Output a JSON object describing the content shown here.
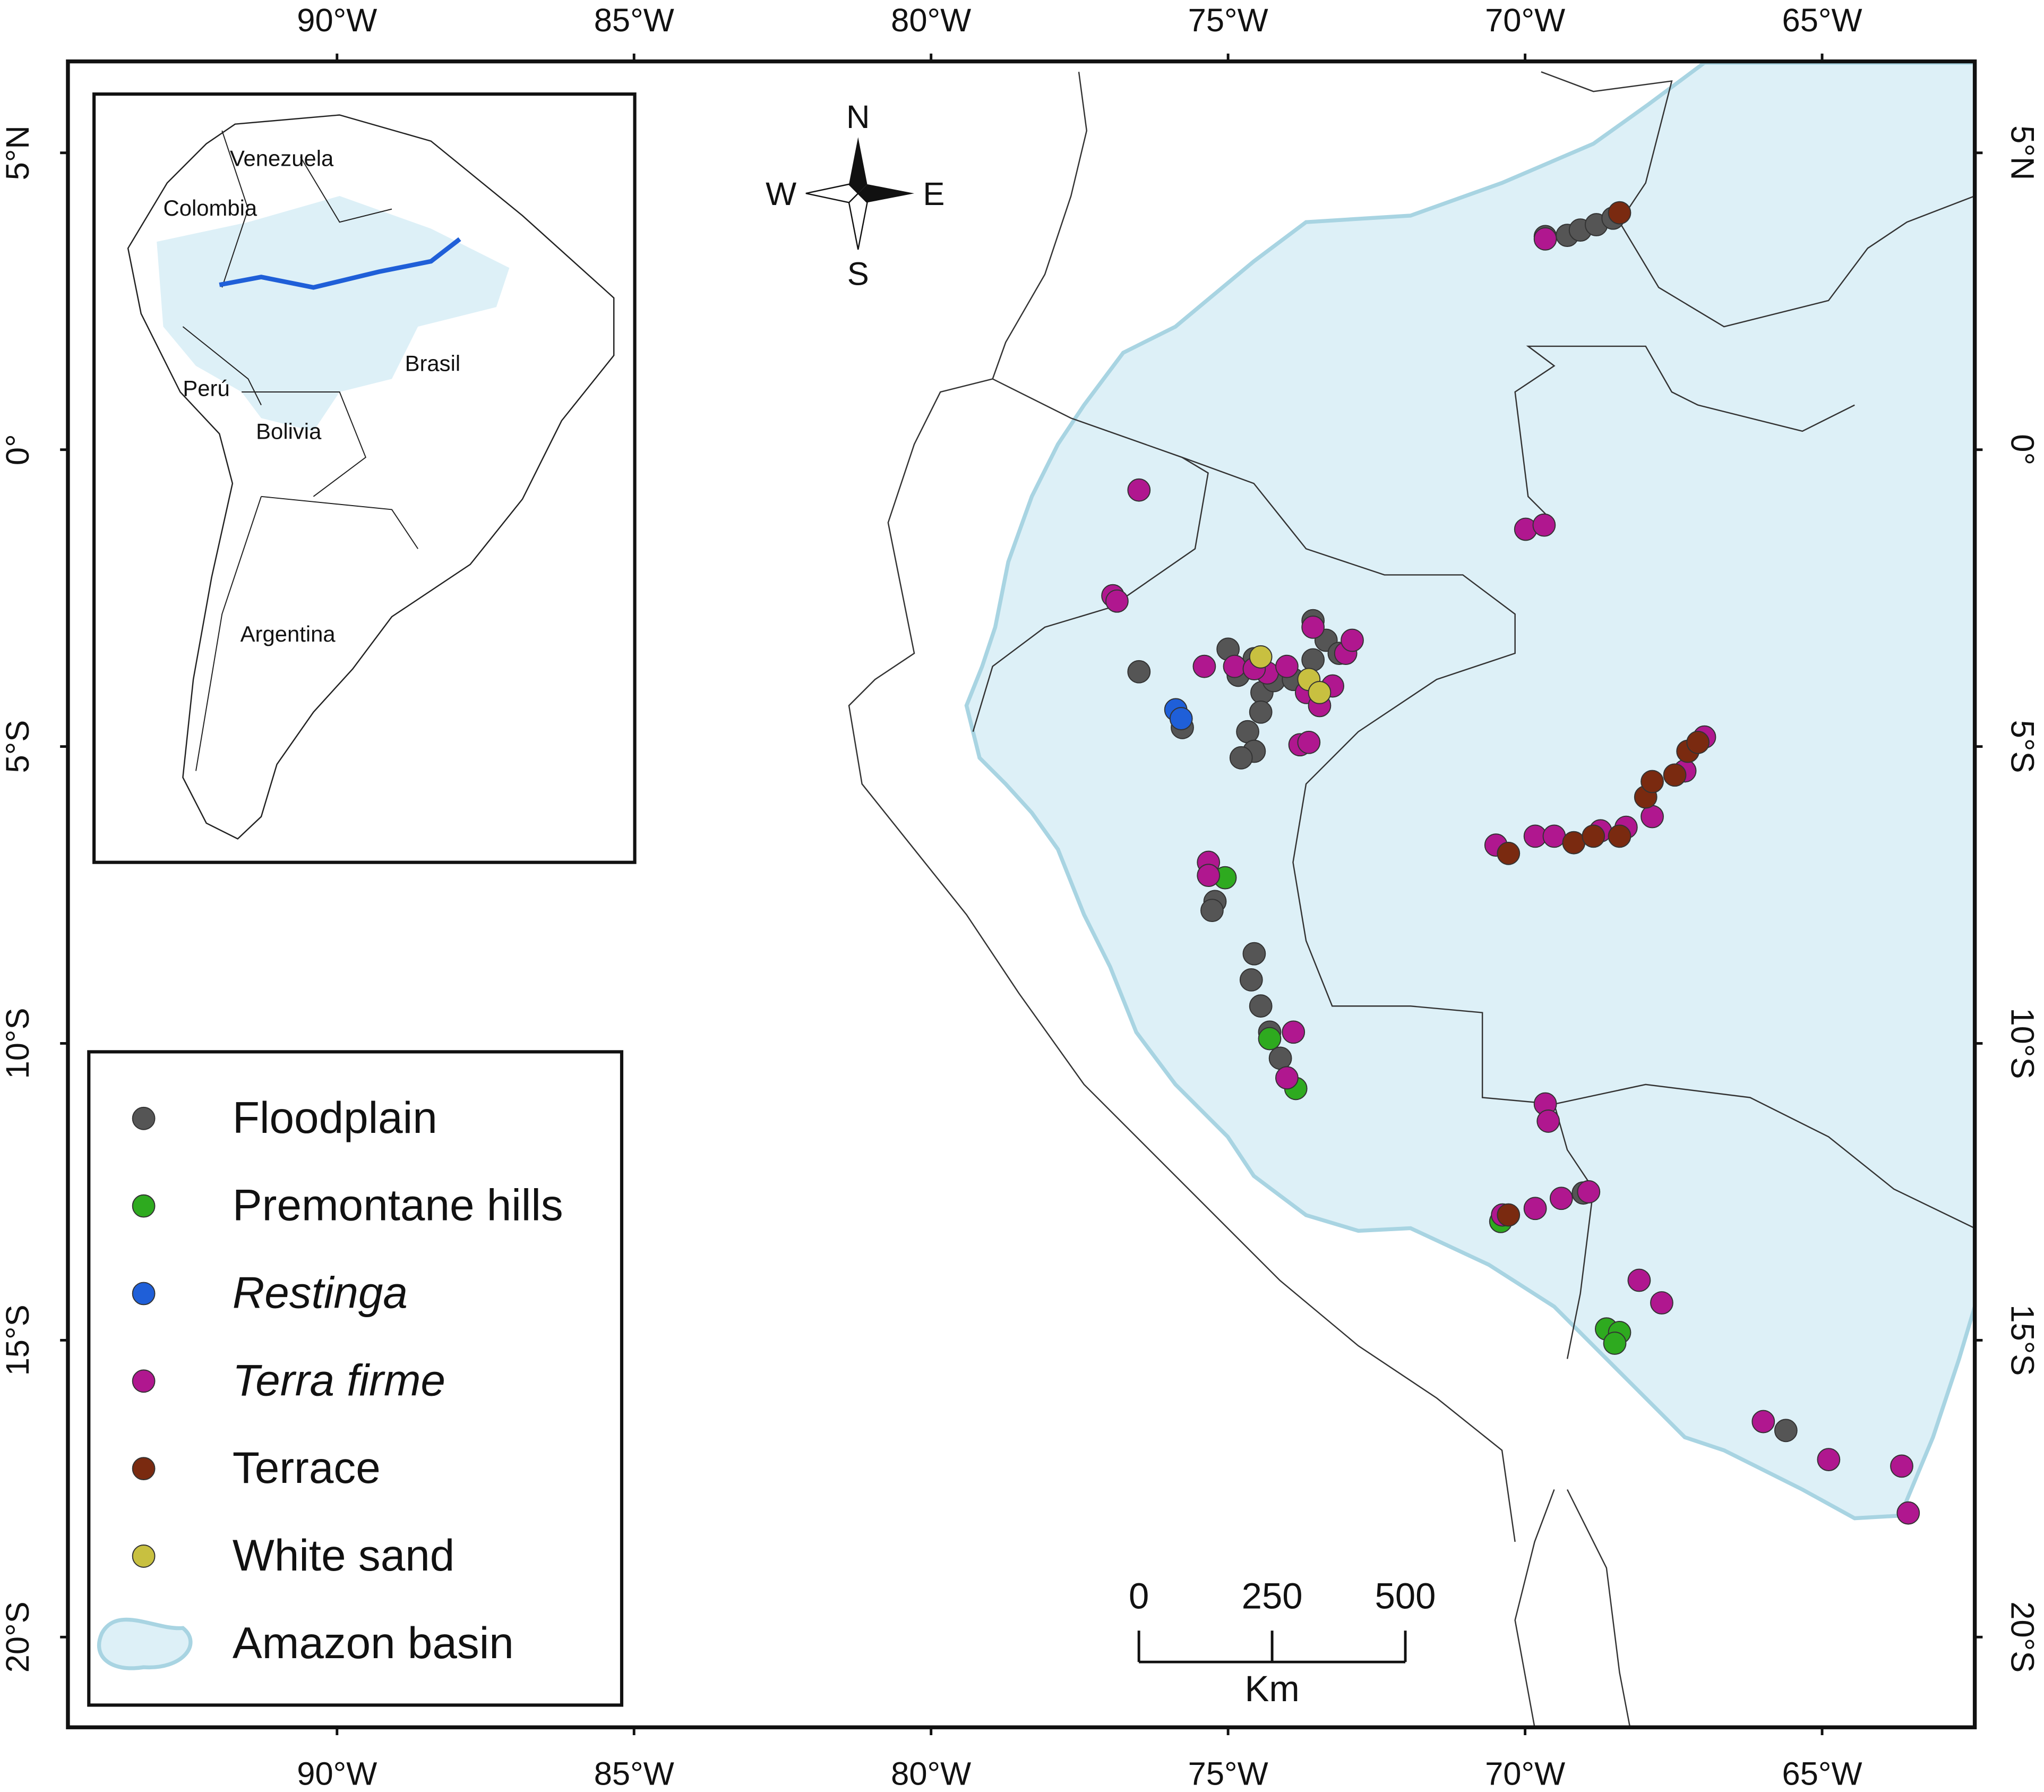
{
  "chart_data": {
    "type": "scatter",
    "xlim": [
      -94.53,
      -62.43
    ],
    "ylim": [
      -21.52,
      6.54
    ],
    "xticks": [
      {
        "value": -90,
        "label": "90°W"
      },
      {
        "value": -85,
        "label": "85°W"
      },
      {
        "value": -80,
        "label": "80°W"
      },
      {
        "value": -75,
        "label": "75°W"
      },
      {
        "value": -70,
        "label": "70°W"
      },
      {
        "value": -65,
        "label": "65°W"
      }
    ],
    "yticks": [
      {
        "value": 5,
        "label": "5°N"
      },
      {
        "value": 0,
        "label": "0°"
      },
      {
        "value": -5,
        "label": "5°S"
      },
      {
        "value": -10,
        "label": "10°S"
      },
      {
        "value": -15,
        "label": "15°S"
      },
      {
        "value": -20,
        "label": "20°S"
      }
    ],
    "series": [
      {
        "name": "Floodplain",
        "color": "#555555",
        "italic": false,
        "x": [
          -69.66,
          -69.29,
          -69.07,
          -68.8,
          -68.52,
          -76.5,
          -75.77,
          -75.0,
          -74.83,
          -74.56,
          -74.43,
          -74.23,
          -73.9,
          -73.57,
          -73.35,
          -73.13,
          -74.67,
          -74.56,
          -74.78,
          -74.45,
          -75.22,
          -75.27,
          -74.56,
          -74.61,
          -74.45,
          -74.3,
          -74.12,
          -69.02,
          -65.61,
          -73.57
        ],
        "y": [
          3.59,
          3.61,
          3.7,
          3.79,
          3.9,
          -3.74,
          -4.68,
          -3.36,
          -3.8,
          -3.52,
          -4.09,
          -3.89,
          -3.87,
          -3.54,
          -3.21,
          -3.43,
          -4.75,
          -5.08,
          -5.19,
          -4.42,
          -7.61,
          -7.76,
          -8.49,
          -8.93,
          -9.37,
          -9.81,
          -10.25,
          -12.52,
          -16.52,
          -2.88
        ]
      },
      {
        "name": "Premontane hills",
        "color": "#2eaa1f",
        "italic": false,
        "x": [
          -75.05,
          -73.86,
          -74.3,
          -70.41,
          -68.63,
          -68.41,
          -68.49
        ],
        "y": [
          -7.21,
          -10.76,
          -9.92,
          -13.0,
          -14.81,
          -14.87,
          -15.05
        ]
      },
      {
        "name": "Restinga",
        "color": "#1f5fd8",
        "italic": true,
        "x": [
          -75.88,
          -75.79
        ],
        "y": [
          -4.38,
          -4.53
        ]
      },
      {
        "name": "Terra firme",
        "color": "#b0178f",
        "italic": true,
        "x": [
          -76.5,
          -76.94,
          -76.87,
          -69.99,
          -69.68,
          -75.4,
          -74.89,
          -74.34,
          -74.01,
          -73.68,
          -73.46,
          -73.24,
          -73.02,
          -72.91,
          -73.57,
          -73.79,
          -73.64,
          -75.33,
          -75.33,
          -73.9,
          -74.01,
          -70.49,
          -69.83,
          -69.51,
          -68.73,
          -68.3,
          -67.86,
          -67.31,
          -66.98,
          -69.66,
          -69.61,
          -70.38,
          -69.83,
          -69.39,
          -68.93,
          -68.08,
          -67.7,
          -65.99,
          -64.89,
          -63.66,
          -63.55,
          -74.56,
          -69.66
        ],
        "y": [
          -0.68,
          -2.46,
          -2.55,
          -1.34,
          -1.27,
          -3.65,
          -3.65,
          -3.76,
          -3.65,
          -4.09,
          -4.31,
          -3.98,
          -3.43,
          -3.21,
          -2.99,
          -4.97,
          -4.93,
          -6.95,
          -7.17,
          -9.81,
          -10.58,
          -6.66,
          -6.51,
          -6.51,
          -6.42,
          -6.36,
          -6.18,
          -5.41,
          -4.84,
          -11.02,
          -11.31,
          -12.89,
          -12.78,
          -12.61,
          -12.5,
          -13.99,
          -14.37,
          -16.37,
          -17.01,
          -17.12,
          -17.91,
          -3.69,
          3.55
        ]
      },
      {
        "name": "Terrace",
        "color": "#7a2a10",
        "italic": false,
        "x": [
          -70.28,
          -69.18,
          -68.85,
          -68.41,
          -67.97,
          -67.86,
          -67.48,
          -67.26,
          -67.09,
          -68.41,
          -70.28
        ],
        "y": [
          -6.8,
          -6.62,
          -6.51,
          -6.51,
          -5.85,
          -5.59,
          -5.48,
          -5.08,
          -4.93,
          3.99,
          -12.89
        ]
      },
      {
        "name": "White sand",
        "color": "#c8c040",
        "italic": false,
        "x": [
          -74.45,
          -73.64,
          -73.46
        ],
        "y": [
          -3.49,
          -3.87,
          -4.09
        ]
      }
    ],
    "basin": {
      "name": "Amazon basin",
      "color": "#ddf0f7"
    },
    "compass": {
      "north": "N",
      "south": "S",
      "east": "E",
      "west": "W"
    },
    "scale_bar": {
      "ticks": [
        0,
        250,
        500
      ],
      "unit": "Km"
    },
    "inset": {
      "labels": [
        "Venezuela",
        "Colombia",
        "Brasil",
        "Perú",
        "Bolivia",
        "Argentina"
      ]
    }
  }
}
